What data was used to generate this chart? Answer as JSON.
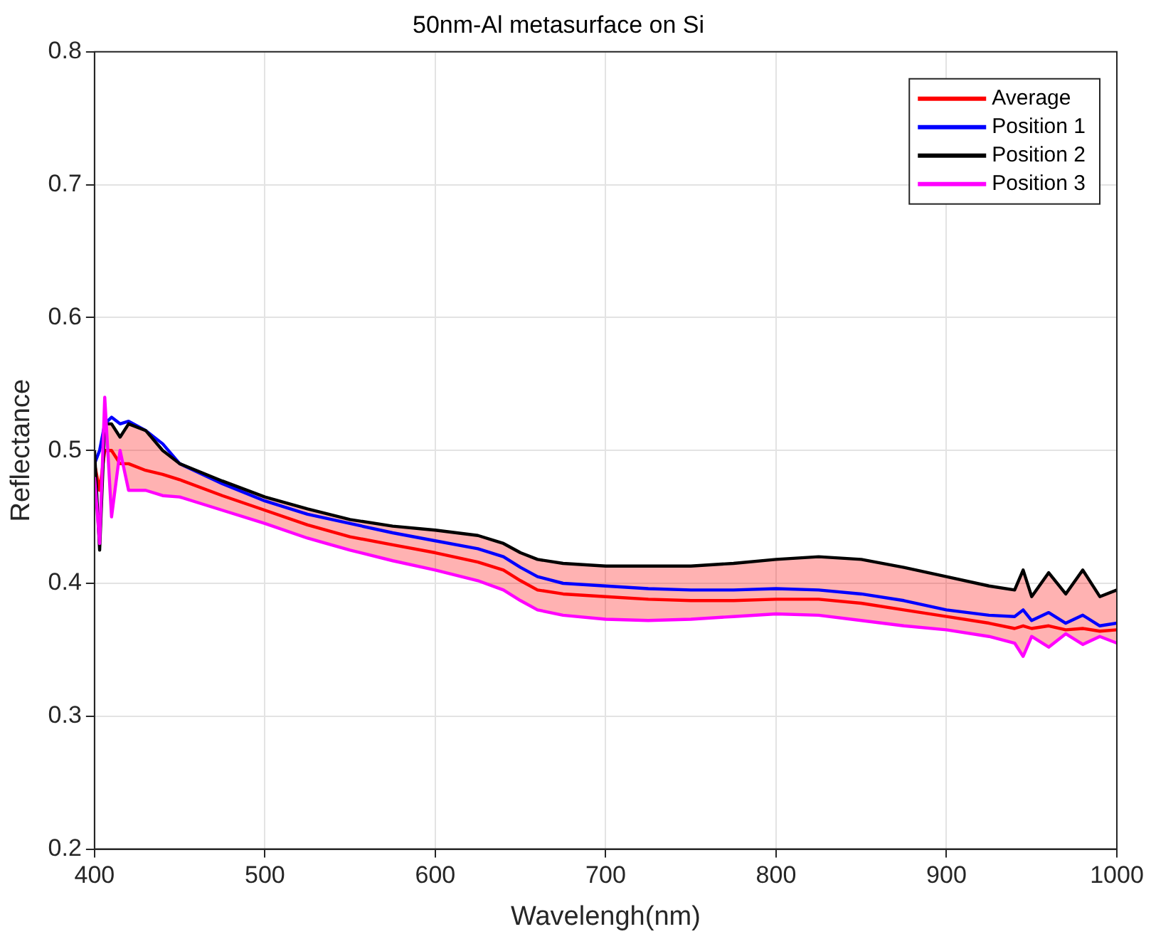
{
  "chart_data": {
    "type": "line",
    "title": "50nm-Al metasurface on Si",
    "xlabel": "Wavelengh(nm)",
    "ylabel": "Reflectance",
    "x": [
      400,
      403,
      406,
      410,
      415,
      420,
      430,
      440,
      450,
      475,
      500,
      525,
      550,
      575,
      600,
      625,
      640,
      650,
      660,
      675,
      700,
      725,
      750,
      775,
      800,
      825,
      850,
      875,
      900,
      925,
      940,
      945,
      950,
      960,
      970,
      980,
      990,
      1000
    ],
    "series": [
      {
        "name": "Average",
        "color": "#ff0000",
        "values": [
          0.49,
          0.47,
          0.5,
          0.5,
          0.49,
          0.49,
          0.485,
          0.482,
          0.478,
          0.466,
          0.455,
          0.444,
          0.435,
          0.429,
          0.423,
          0.416,
          0.41,
          0.402,
          0.395,
          0.392,
          0.39,
          0.388,
          0.387,
          0.387,
          0.388,
          0.388,
          0.385,
          0.38,
          0.375,
          0.37,
          0.366,
          0.368,
          0.366,
          0.368,
          0.365,
          0.366,
          0.364,
          0.365
        ],
        "lower": [
          0.48,
          0.43,
          0.54,
          0.45,
          0.5,
          0.47,
          0.47,
          0.466,
          0.465,
          0.455,
          0.445,
          0.434,
          0.425,
          0.417,
          0.41,
          0.402,
          0.395,
          0.387,
          0.38,
          0.376,
          0.373,
          0.372,
          0.373,
          0.375,
          0.377,
          0.376,
          0.372,
          0.368,
          0.365,
          0.36,
          0.355,
          0.345,
          0.36,
          0.352,
          0.362,
          0.354,
          0.36,
          0.355
        ],
        "upper": [
          0.5,
          0.425,
          0.52,
          0.52,
          0.51,
          0.52,
          0.515,
          0.5,
          0.49,
          0.477,
          0.465,
          0.456,
          0.448,
          0.443,
          0.44,
          0.436,
          0.43,
          0.423,
          0.418,
          0.415,
          0.413,
          0.413,
          0.413,
          0.415,
          0.418,
          0.42,
          0.418,
          0.412,
          0.405,
          0.398,
          0.395,
          0.41,
          0.39,
          0.408,
          0.392,
          0.41,
          0.39,
          0.395
        ]
      },
      {
        "name": "Position 1",
        "color": "#0000ff",
        "values": [
          0.49,
          0.5,
          0.52,
          0.525,
          0.52,
          0.522,
          0.515,
          0.505,
          0.49,
          0.475,
          0.462,
          0.452,
          0.445,
          0.438,
          0.432,
          0.426,
          0.42,
          0.412,
          0.405,
          0.4,
          0.398,
          0.396,
          0.395,
          0.395,
          0.396,
          0.395,
          0.392,
          0.387,
          0.38,
          0.376,
          0.375,
          0.38,
          0.372,
          0.378,
          0.37,
          0.376,
          0.368,
          0.37
        ]
      },
      {
        "name": "Position 2",
        "color": "#000000",
        "values": [
          0.5,
          0.425,
          0.52,
          0.52,
          0.51,
          0.52,
          0.515,
          0.5,
          0.49,
          0.477,
          0.465,
          0.456,
          0.448,
          0.443,
          0.44,
          0.436,
          0.43,
          0.423,
          0.418,
          0.415,
          0.413,
          0.413,
          0.413,
          0.415,
          0.418,
          0.42,
          0.418,
          0.412,
          0.405,
          0.398,
          0.395,
          0.41,
          0.39,
          0.408,
          0.392,
          0.41,
          0.39,
          0.395
        ]
      },
      {
        "name": "Position 3",
        "color": "#ff00ff",
        "values": [
          0.48,
          0.43,
          0.54,
          0.45,
          0.5,
          0.47,
          0.47,
          0.466,
          0.465,
          0.455,
          0.445,
          0.434,
          0.425,
          0.417,
          0.41,
          0.402,
          0.395,
          0.387,
          0.38,
          0.376,
          0.373,
          0.372,
          0.373,
          0.375,
          0.377,
          0.376,
          0.372,
          0.368,
          0.365,
          0.36,
          0.355,
          0.345,
          0.36,
          0.352,
          0.362,
          0.354,
          0.36,
          0.355
        ]
      }
    ],
    "xlim": [
      400,
      1000
    ],
    "xticks": [
      400,
      500,
      600,
      700,
      800,
      900,
      1000
    ],
    "ylim": [
      0.2,
      0.8
    ],
    "yticks": [
      0.2,
      0.3,
      0.4,
      0.5,
      0.6,
      0.7,
      0.8
    ],
    "grid": true,
    "legend": "top right",
    "marker": "none",
    "line_style": "solid"
  }
}
